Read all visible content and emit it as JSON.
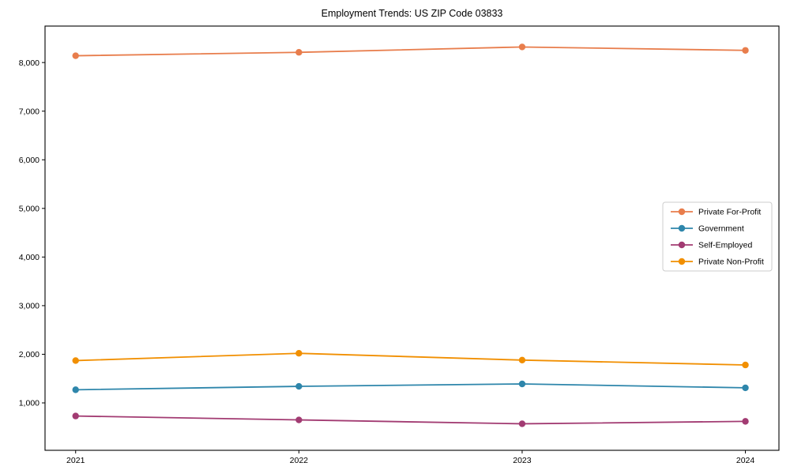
{
  "page": {
    "background_color": "#ffffff"
  },
  "chart_data": {
    "type": "line",
    "title": "Employment Trends: US ZIP Code 03833",
    "x": [
      "2021",
      "2022",
      "2023",
      "2024"
    ],
    "series": [
      {
        "name": "Private For-Profit",
        "color": "#E87D4C",
        "values": [
          8140,
          8210,
          8320,
          8250
        ]
      },
      {
        "name": "Government",
        "color": "#2E86AB",
        "values": [
          1270,
          1340,
          1390,
          1310
        ]
      },
      {
        "name": "Self-Employed",
        "color": "#A23B72",
        "values": [
          730,
          650,
          570,
          620
        ]
      },
      {
        "name": "Private Non-Profit",
        "color": "#F18F01",
        "values": [
          1870,
          2020,
          1880,
          1780
        ]
      }
    ],
    "xlabel": "",
    "ylabel": "",
    "ylim": [
      25,
      8750
    ],
    "y_ticks": [
      {
        "value": 1000,
        "label": "1,000"
      },
      {
        "value": 2000,
        "label": "2,000"
      },
      {
        "value": 3000,
        "label": "3,000"
      },
      {
        "value": 4000,
        "label": "4,000"
      },
      {
        "value": 5000,
        "label": "5,000"
      },
      {
        "value": 6000,
        "label": "6,000"
      },
      {
        "value": 7000,
        "label": "7,000"
      },
      {
        "value": 8000,
        "label": "8,000"
      }
    ],
    "grid": false,
    "marker": "circle",
    "legend_position": "right-middle",
    "frame_color": "#000000",
    "legend_border_color": "#cccccc"
  }
}
